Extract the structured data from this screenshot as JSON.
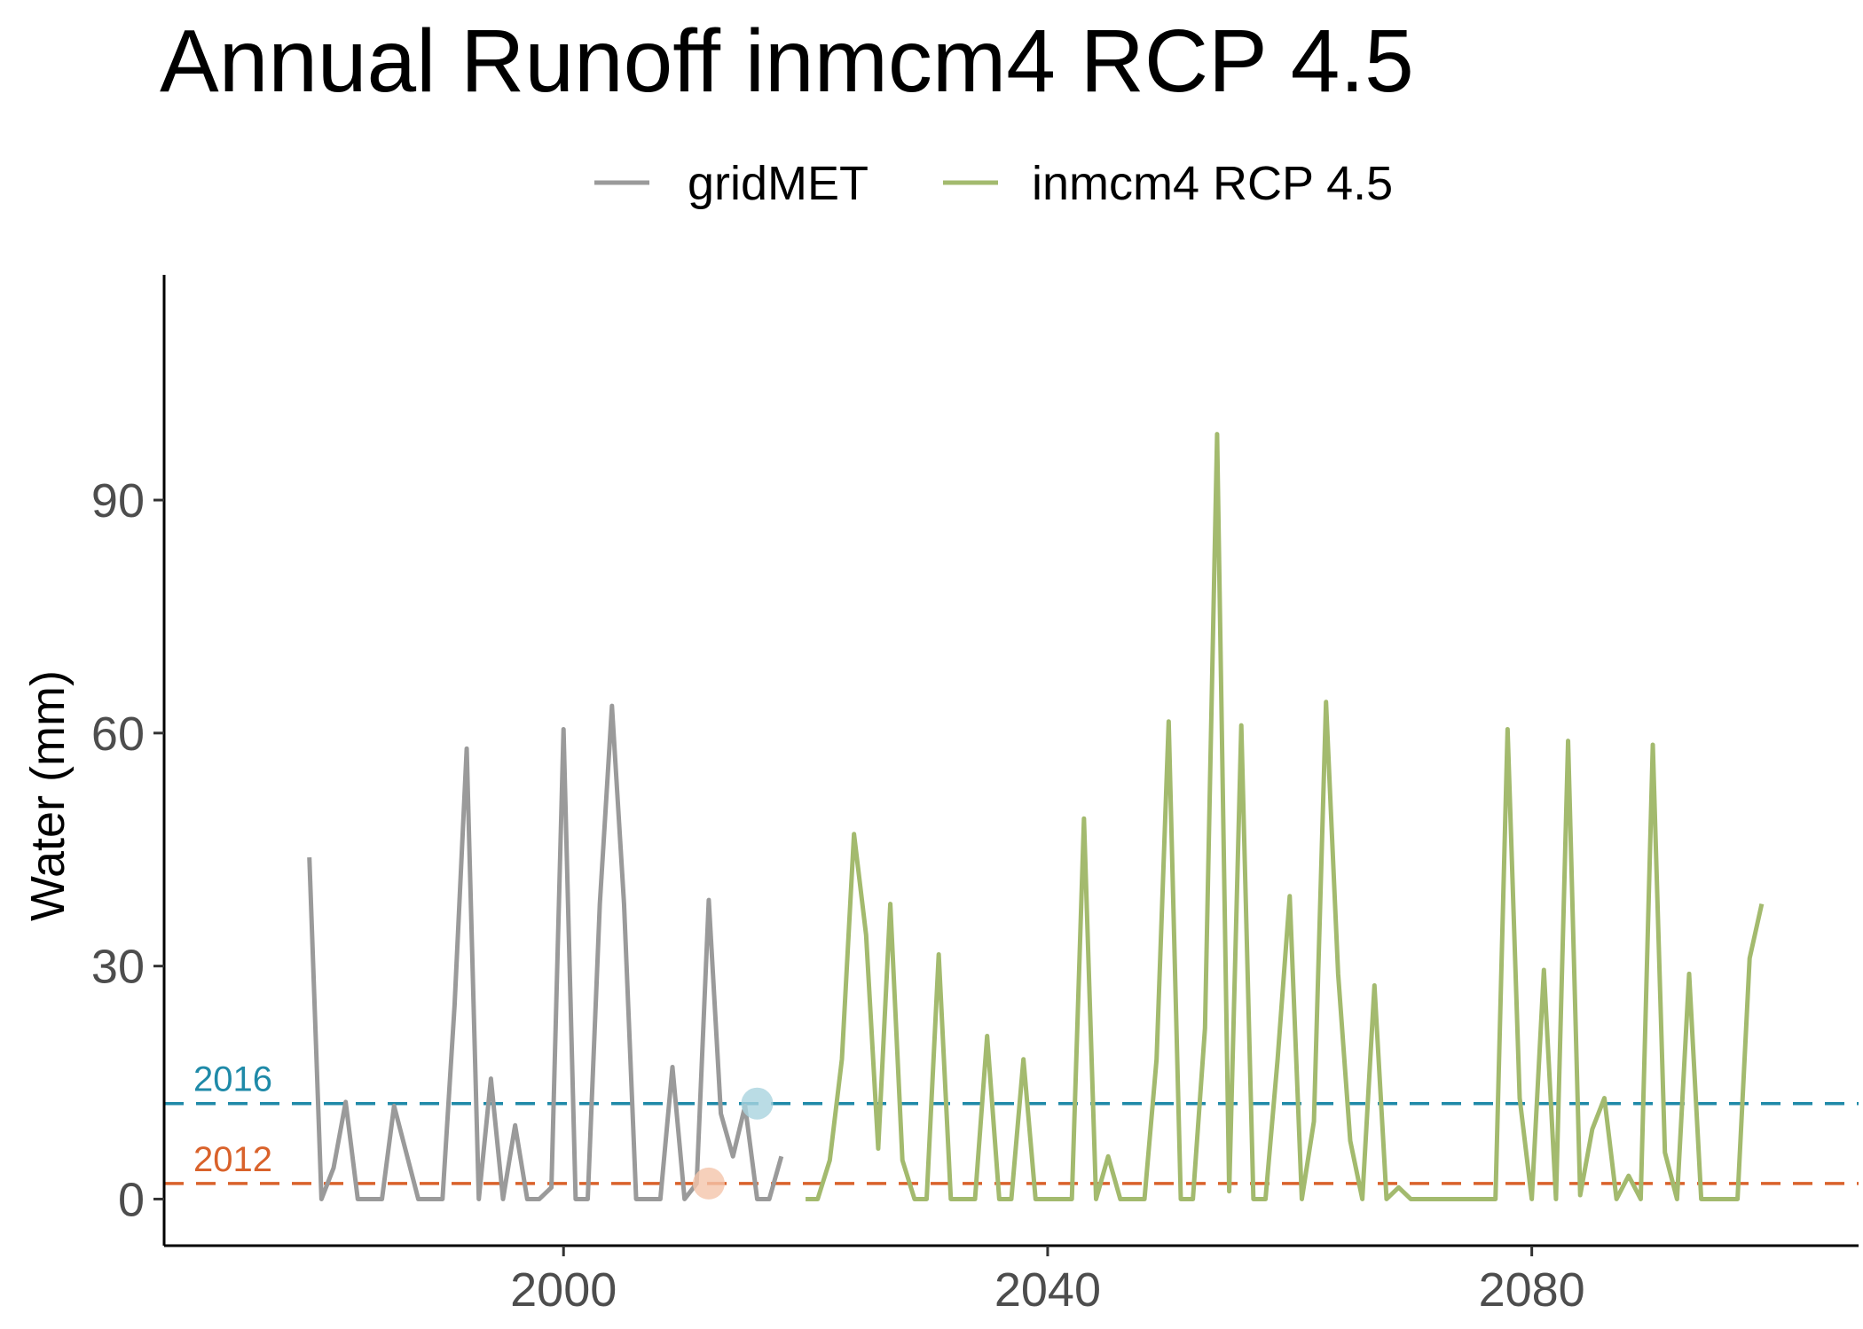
{
  "chart_data": {
    "type": "line",
    "title": "Annual Runoff inmcm4 RCP 4.5",
    "xlabel": "",
    "ylabel": "Water (mm)",
    "xlim": [
      1967,
      2107
    ],
    "ylim": [
      -6,
      119
    ],
    "x_ticks": [
      2000,
      2040,
      2080
    ],
    "y_ticks": [
      0,
      30,
      60,
      90
    ],
    "legend_position": "top",
    "grid": false,
    "series": [
      {
        "name": "gridMET",
        "color": "#9a9a9a",
        "x": [
          1979,
          1980,
          1981,
          1982,
          1983,
          1984,
          1985,
          1986,
          1987,
          1988,
          1989,
          1990,
          1991,
          1992,
          1993,
          1994,
          1995,
          1996,
          1997,
          1998,
          1999,
          2000,
          2001,
          2002,
          2003,
          2004,
          2005,
          2006,
          2007,
          2008,
          2009,
          2010,
          2011,
          2012,
          2013,
          2014,
          2015,
          2016,
          2017,
          2018,
          2019
        ],
        "y": [
          44,
          0,
          4,
          12.5,
          0,
          0,
          0,
          12,
          6,
          0,
          0,
          0,
          25,
          58,
          0,
          15.5,
          0,
          9.5,
          0,
          0,
          1.5,
          60.5,
          0,
          0,
          38,
          63.5,
          38,
          0,
          0,
          0,
          17,
          0,
          2,
          38.5,
          11,
          5.5,
          12,
          0,
          0,
          5.5,
          null
        ]
      },
      {
        "name": "inmcm4 RCP 4.5",
        "color": "#a3ba6e",
        "x": [
          2020,
          2021,
          2022,
          2023,
          2024,
          2025,
          2026,
          2027,
          2028,
          2029,
          2030,
          2031,
          2032,
          2033,
          2034,
          2035,
          2036,
          2037,
          2038,
          2039,
          2040,
          2041,
          2042,
          2043,
          2044,
          2045,
          2046,
          2047,
          2048,
          2049,
          2050,
          2051,
          2052,
          2053,
          2054,
          2055,
          2056,
          2057,
          2058,
          2059,
          2060,
          2061,
          2062,
          2063,
          2064,
          2065,
          2066,
          2067,
          2068,
          2069,
          2070,
          2071,
          2072,
          2073,
          2074,
          2075,
          2076,
          2077,
          2078,
          2079,
          2080,
          2081,
          2082,
          2083,
          2084,
          2085,
          2086,
          2087,
          2088,
          2089,
          2090,
          2091,
          2092,
          2093,
          2094,
          2095,
          2096,
          2097,
          2098,
          2099
        ],
        "y": [
          0,
          0,
          5,
          18,
          47,
          34,
          6.5,
          38,
          5,
          0,
          0,
          31.5,
          0,
          0,
          0,
          21,
          0,
          0,
          18,
          0,
          0,
          0,
          0,
          49,
          0,
          5.5,
          0,
          0,
          0,
          18,
          61.5,
          0,
          0,
          22,
          98.5,
          1,
          61,
          0,
          0,
          18,
          39,
          0,
          10,
          64,
          29,
          7.5,
          0,
          27.5,
          0,
          1.5,
          0,
          0,
          0,
          0,
          0,
          0,
          0,
          0,
          60.5,
          13,
          0,
          29.5,
          0,
          59,
          0.5,
          9,
          13,
          0,
          3,
          0,
          58.5,
          6,
          0,
          29,
          0,
          0,
          0,
          0,
          31,
          38
        ]
      }
    ],
    "reference_lines": [
      {
        "label": "2016",
        "y": 12.3,
        "color": "#1f8aa8",
        "point_x": 2016,
        "point_fill": "#a9d3df"
      },
      {
        "label": "2012",
        "y": 2,
        "color": "#d9622b",
        "point_x": 2012,
        "point_fill": "#f4c4aa"
      }
    ]
  }
}
